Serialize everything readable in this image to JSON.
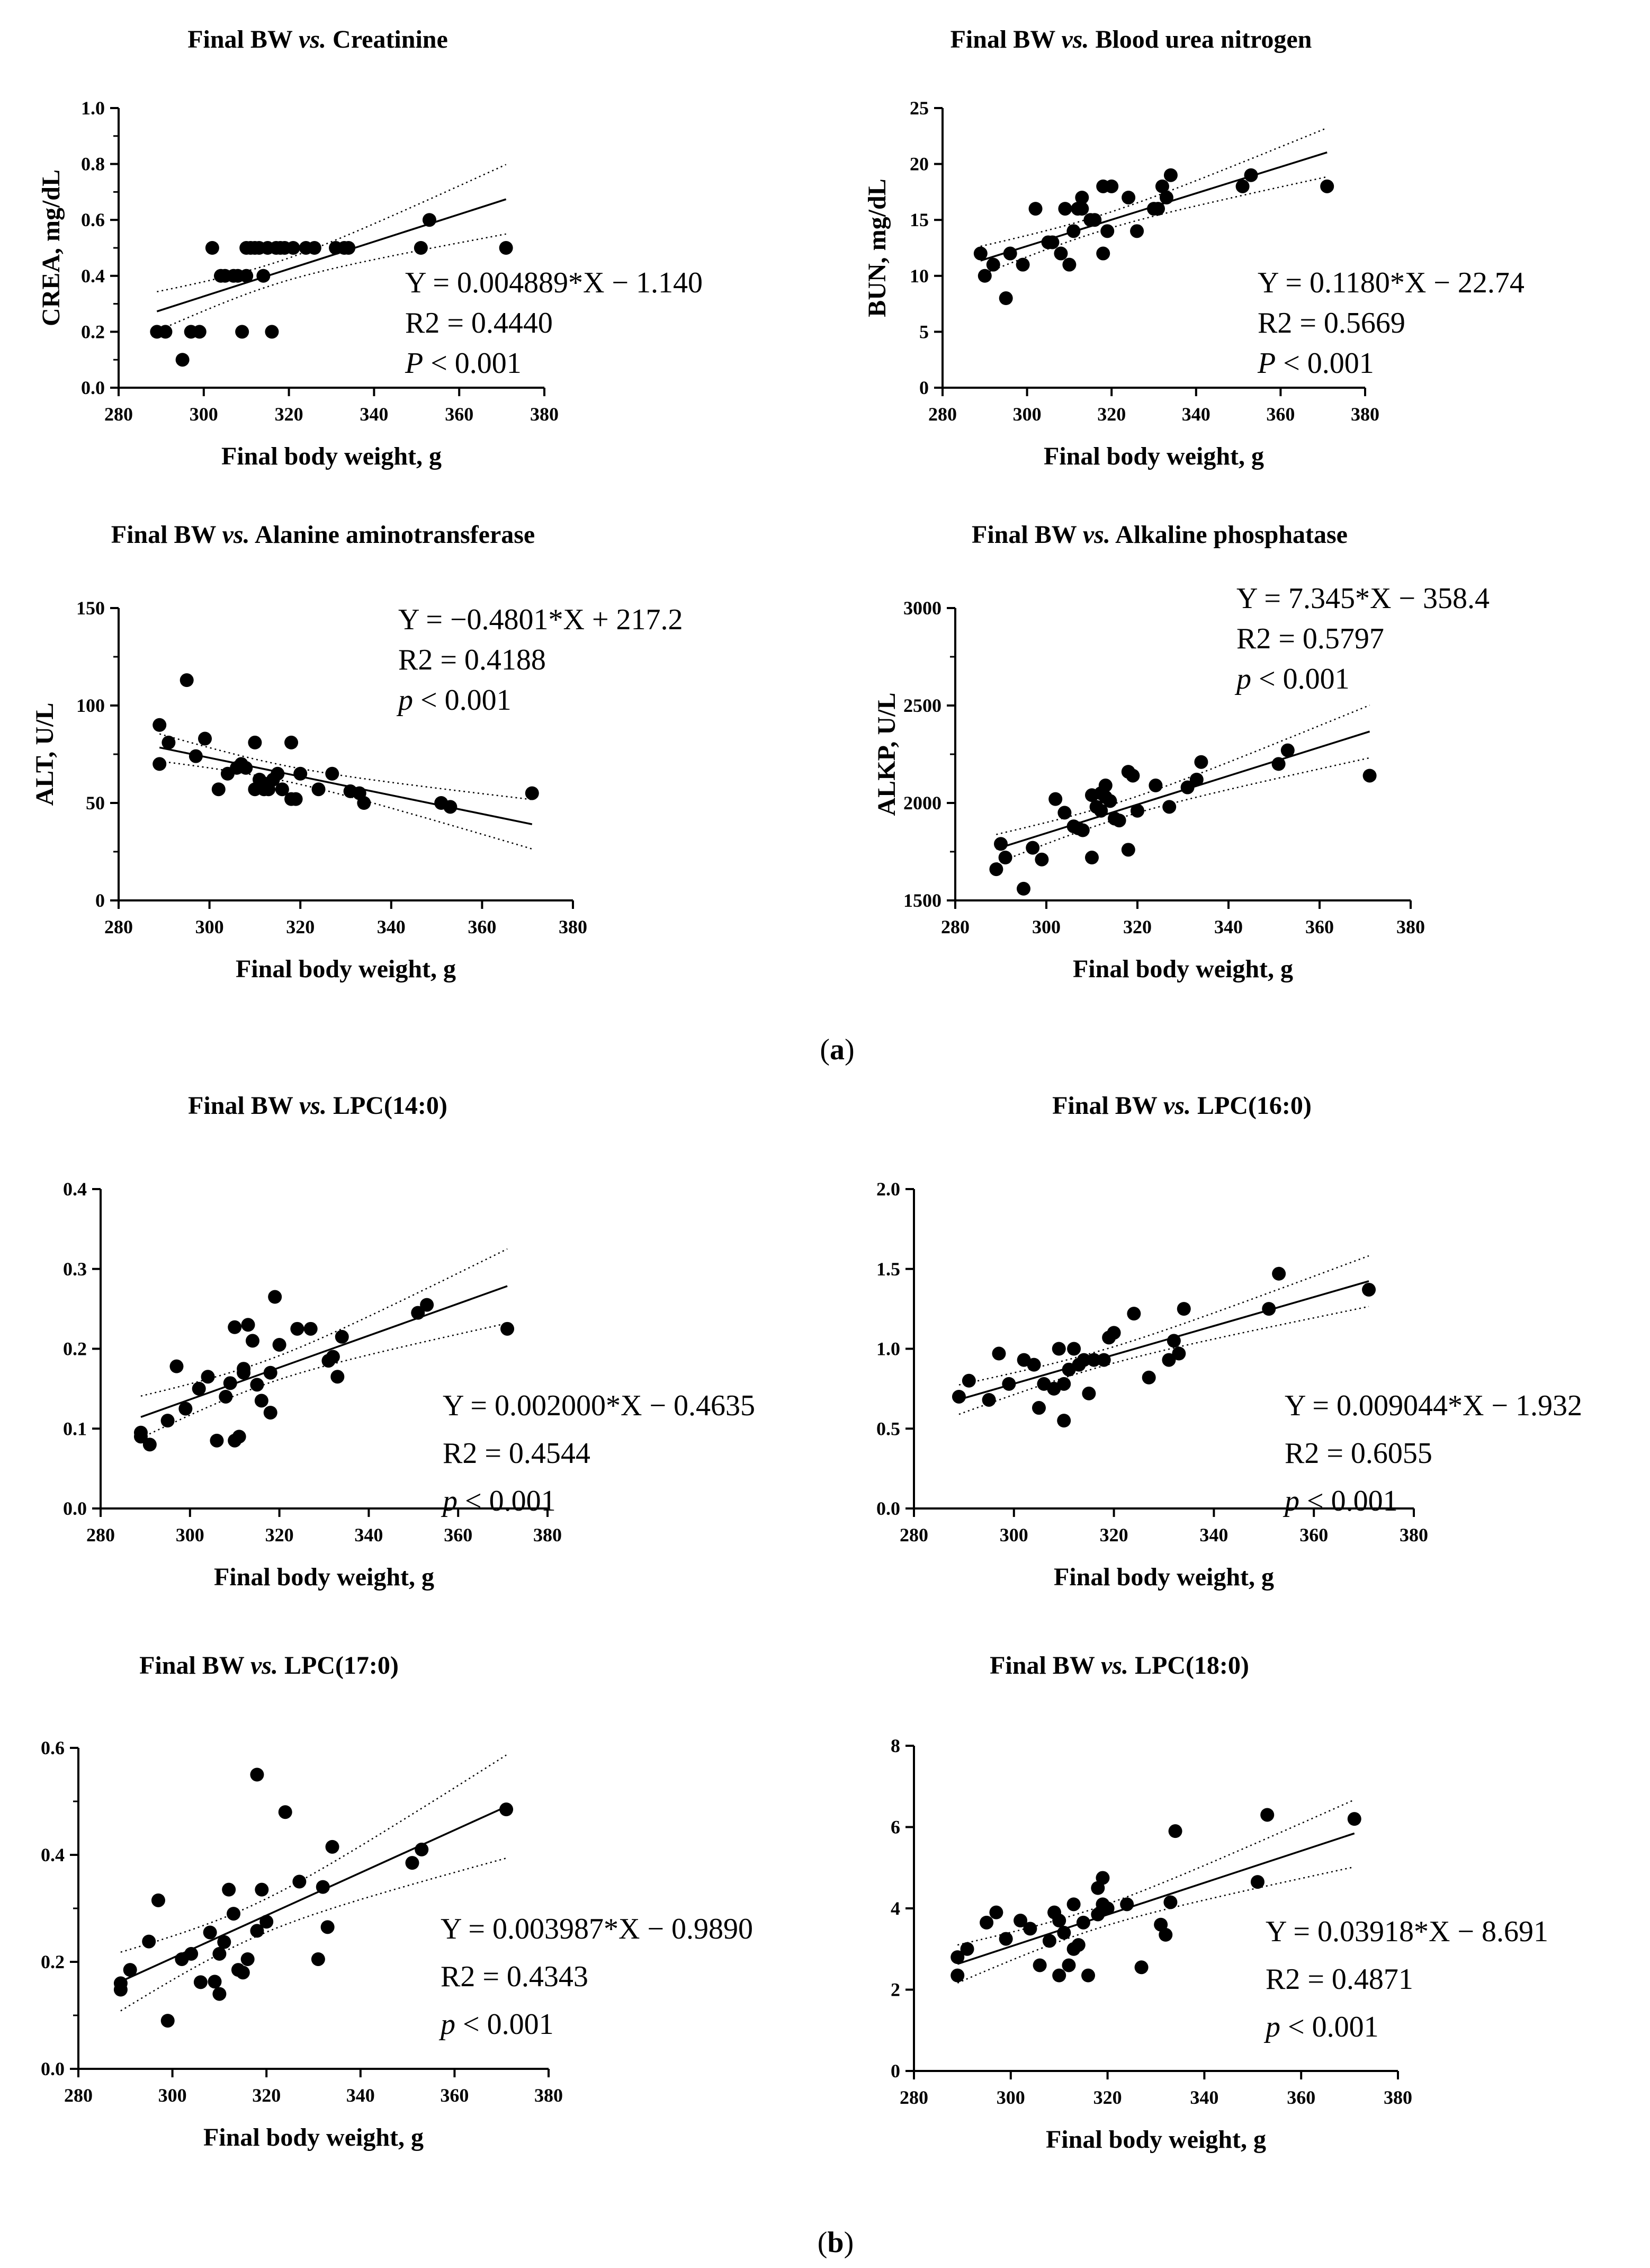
{
  "figure": {
    "panel_a_label": "a",
    "panel_b_label": "b",
    "colors": {
      "ink": "#000000",
      "background": "#ffffff"
    }
  },
  "chart_data": [
    {
      "type": "scatter",
      "title_prefix": "Final BW",
      "title_vs": "vs.",
      "title_suffix": "Creatinine",
      "xlabel": "Final body weight, g",
      "ylabel": "CREA, mg/dL",
      "xlim": [
        280,
        380
      ],
      "ylim": [
        0,
        1.0
      ],
      "xticks": [
        "280",
        "300",
        "320",
        "340",
        "360",
        "380"
      ],
      "yticks": [
        "0.0",
        "0.2",
        "0.4",
        "0.6",
        "0.8",
        "1.0"
      ],
      "yminor": true,
      "fit": {
        "slope": 0.004889,
        "intercept": -1.14,
        "x_range": [
          289,
          371
        ]
      },
      "equation": "Y = 0.004889*X − 1.140",
      "r2": "R2 = 0.4440",
      "p_symbol": "P",
      "p_text": "< 0.001",
      "x": [
        289,
        291,
        295,
        297,
        299,
        302,
        304,
        305,
        307,
        308,
        309,
        310,
        310,
        311,
        312,
        313,
        314,
        315,
        316,
        317,
        318,
        319,
        321,
        324,
        326,
        331,
        333,
        334,
        351,
        353,
        371
      ],
      "y": [
        0.2,
        0.2,
        0.1,
        0.2,
        0.2,
        0.5,
        0.4,
        0.4,
        0.4,
        0.4,
        0.2,
        0.4,
        0.5,
        0.5,
        0.5,
        0.5,
        0.4,
        0.5,
        0.2,
        0.5,
        0.5,
        0.5,
        0.5,
        0.5,
        0.5,
        0.5,
        0.5,
        0.5,
        0.5,
        0.6,
        0.5
      ]
    },
    {
      "type": "scatter",
      "title_prefix": "Final BW",
      "title_vs": "vs.",
      "title_suffix": "Blood urea nitrogen",
      "xlabel": "Final body weight, g",
      "ylabel": "BUN, mg/dL",
      "xlim": [
        280,
        380
      ],
      "ylim": [
        0,
        25
      ],
      "xticks": [
        "280",
        "300",
        "320",
        "340",
        "360",
        "380"
      ],
      "yticks": [
        "0",
        "5",
        "10",
        "15",
        "20",
        "25"
      ],
      "yminor": false,
      "fit": {
        "slope": 0.118,
        "intercept": -22.74,
        "x_range": [
          289,
          371
        ]
      },
      "equation": "Y = 0.1180*X − 22.74",
      "r2": "R2 = 0.5669",
      "p_symbol": "P",
      "p_text": "< 0.001",
      "x": [
        289,
        290,
        292,
        295,
        296,
        299,
        302,
        305,
        306,
        308,
        309,
        310,
        311,
        312,
        313,
        313,
        315,
        316,
        318,
        318,
        319,
        320,
        324,
        326,
        330,
        331,
        332,
        333,
        334,
        351,
        353,
        371
      ],
      "y": [
        12,
        10,
        11,
        8,
        12,
        11,
        16,
        13,
        13,
        12,
        16,
        11,
        14,
        16,
        16,
        17,
        15,
        15,
        12,
        18,
        14,
        18,
        17,
        14,
        16,
        16,
        18,
        17,
        19,
        18,
        19,
        18
      ]
    },
    {
      "type": "scatter",
      "title_prefix": "Final BW",
      "title_vs": "vs.",
      "title_suffix": "Alanine aminotransferase",
      "xlabel": "Final body weight, g",
      "ylabel": "ALT, U/L",
      "xlim": [
        280,
        380
      ],
      "ylim": [
        0,
        150
      ],
      "xticks": [
        "280",
        "300",
        "320",
        "340",
        "360",
        "380"
      ],
      "yticks": [
        "0",
        "50",
        "100",
        "150"
      ],
      "yminor": true,
      "fit": {
        "slope": -0.4801,
        "intercept": 217.2,
        "x_range": [
          289,
          371
        ]
      },
      "equation": "Y = −0.4801*X + 217.2",
      "r2": "R2 = 0.4188",
      "p_symbol": "p",
      "p_text": "< 0.001",
      "x": [
        289,
        289,
        291,
        295,
        297,
        299,
        302,
        304,
        306,
        307,
        308,
        310,
        310,
        311,
        312,
        312,
        313,
        314,
        315,
        316,
        318,
        318,
        319,
        320,
        324,
        327,
        331,
        333,
        334,
        351,
        353,
        371
      ],
      "y": [
        90,
        70,
        81,
        113,
        74,
        83,
        57,
        65,
        68,
        70,
        68,
        81,
        57,
        62,
        60,
        57,
        57,
        62,
        65,
        57,
        81,
        52,
        52,
        65,
        57,
        65,
        56,
        55,
        50,
        50,
        48,
        55
      ]
    },
    {
      "type": "scatter",
      "title_prefix": "Final BW",
      "title_vs": "vs.",
      "title_suffix": "Alkaline phosphatase",
      "xlabel": "Final body weight, g",
      "ylabel": "ALKP, U/L",
      "xlim": [
        280,
        380
      ],
      "ylim": [
        1500,
        3000
      ],
      "xticks": [
        "280",
        "300",
        "320",
        "340",
        "360",
        "380"
      ],
      "yticks": [
        "1500",
        "2000",
        "2500",
        "3000"
      ],
      "yminor": true,
      "fit": {
        "slope": 7.345,
        "intercept": -358.4,
        "x_range": [
          289,
          371
        ]
      },
      "equation": "Y = 7.345*X − 358.4",
      "r2": "R2 = 0.5797",
      "p_symbol": "p",
      "p_text": "< 0.001",
      "x": [
        289,
        290,
        291,
        295,
        297,
        299,
        302,
        304,
        306,
        307,
        308,
        310,
        310,
        311,
        312,
        312,
        313,
        313,
        314,
        315,
        316,
        318,
        318,
        319,
        320,
        324,
        327,
        331,
        333,
        334,
        351,
        353,
        371
      ],
      "y": [
        1660,
        1790,
        1720,
        1560,
        1770,
        1710,
        2020,
        1950,
        1880,
        1870,
        1860,
        2040,
        1720,
        1980,
        1960,
        2050,
        2090,
        2030,
        2010,
        1920,
        1910,
        2160,
        1760,
        2140,
        1960,
        2090,
        1980,
        2080,
        2120,
        2210,
        2200,
        2270,
        2140
      ]
    },
    {
      "type": "scatter",
      "title_prefix": "Final BW",
      "title_vs": "vs.",
      "title_suffix": "LPC(14:0)",
      "xlabel": "Final body weight, g",
      "ylabel": "",
      "xlim": [
        280,
        380
      ],
      "ylim": [
        0,
        0.4
      ],
      "xticks": [
        "280",
        "300",
        "320",
        "340",
        "360",
        "380"
      ],
      "yticks": [
        "0.0",
        "0.1",
        "0.2",
        "0.3",
        "0.4"
      ],
      "yminor": false,
      "fit": {
        "slope": 0.002,
        "intercept": -0.4635,
        "x_range": [
          289,
          371
        ]
      },
      "equation": "Y = 0.002000*X − 0.4635",
      "r2": "R2 = 0.4544",
      "p_symbol": "p",
      "p_text": "< 0.001",
      "x": [
        289,
        289,
        291,
        295,
        297,
        299,
        302,
        304,
        306,
        308,
        309,
        310,
        310,
        311,
        312,
        312,
        313,
        314,
        315,
        316,
        318,
        318,
        319,
        320,
        324,
        327,
        331,
        332,
        333,
        334,
        351,
        353,
        371
      ],
      "y": [
        0.095,
        0.09,
        0.08,
        0.11,
        0.178,
        0.125,
        0.15,
        0.165,
        0.085,
        0.14,
        0.157,
        0.227,
        0.085,
        0.09,
        0.175,
        0.17,
        0.23,
        0.21,
        0.155,
        0.135,
        0.12,
        0.17,
        0.265,
        0.205,
        0.225,
        0.225,
        0.185,
        0.19,
        0.165,
        0.215,
        0.245,
        0.255,
        0.225
      ]
    },
    {
      "type": "scatter",
      "title_prefix": "Final BW",
      "title_vs": "vs.",
      "title_suffix": "LPC(16:0)",
      "xlabel": "Final body weight, g",
      "ylabel": "",
      "xlim": [
        280,
        380
      ],
      "ylim": [
        0,
        2.0
      ],
      "xticks": [
        "280",
        "300",
        "320",
        "340",
        "360",
        "380"
      ],
      "yticks": [
        "0.0",
        "0.5",
        "1.0",
        "1.5",
        "2.0"
      ],
      "yminor": false,
      "fit": {
        "slope": 0.009044,
        "intercept": -1.932,
        "x_range": [
          289,
          371
        ]
      },
      "equation": "Y = 0.009044*X − 1.932",
      "r2": "R2 = 0.6055",
      "p_symbol": "p",
      "p_text": "< 0.001",
      "x": [
        289,
        291,
        295,
        297,
        299,
        302,
        304,
        305,
        306,
        308,
        309,
        310,
        310,
        311,
        312,
        313,
        314,
        315,
        316,
        318,
        319,
        320,
        324,
        327,
        331,
        332,
        333,
        334,
        351,
        353,
        371
      ],
      "y": [
        0.7,
        0.8,
        0.68,
        0.97,
        0.78,
        0.93,
        0.9,
        0.63,
        0.78,
        0.75,
        1.0,
        0.55,
        0.78,
        0.87,
        1.0,
        0.9,
        0.93,
        0.72,
        0.93,
        0.93,
        1.07,
        1.1,
        1.22,
        0.82,
        0.93,
        1.05,
        0.97,
        1.25,
        1.25,
        1.47,
        1.37
      ]
    },
    {
      "type": "scatter",
      "title_prefix": "Final BW",
      "title_vs": "vs.",
      "title_suffix": "LPC(17:0)",
      "xlabel": "Final body weight, g",
      "ylabel": "",
      "xlim": [
        280,
        380
      ],
      "ylim": [
        0,
        0.6
      ],
      "xticks": [
        "280",
        "300",
        "320",
        "340",
        "360",
        "380"
      ],
      "yticks": [
        "0.0",
        "0.2",
        "0.4",
        "0.6"
      ],
      "yminor": true,
      "fit": {
        "slope": 0.003987,
        "intercept": -0.989,
        "x_range": [
          289,
          371
        ]
      },
      "equation": "Y = 0.003987*X − 0.9890",
      "r2": "R2 = 0.4343",
      "p_symbol": "p",
      "p_text": "< 0.001",
      "x": [
        289,
        289,
        291,
        295,
        297,
        299,
        302,
        304,
        306,
        308,
        309,
        310,
        310,
        311,
        312,
        313,
        314,
        315,
        316,
        318,
        318,
        319,
        320,
        324,
        327,
        331,
        332,
        333,
        334,
        351,
        353,
        371
      ],
      "y": [
        0.16,
        0.148,
        0.185,
        0.238,
        0.315,
        0.09,
        0.205,
        0.215,
        0.162,
        0.255,
        0.163,
        0.14,
        0.215,
        0.237,
        0.335,
        0.29,
        0.185,
        0.18,
        0.205,
        0.258,
        0.55,
        0.335,
        0.275,
        0.48,
        0.35,
        0.205,
        0.34,
        0.265,
        0.415,
        0.385,
        0.41,
        0.485
      ]
    },
    {
      "type": "scatter",
      "title_prefix": "Final BW",
      "title_vs": "vs.",
      "title_suffix": "LPC(18:0)",
      "xlabel": "Final body weight, g",
      "ylabel": "",
      "xlim": [
        280,
        380
      ],
      "ylim": [
        0,
        8
      ],
      "xticks": [
        "280",
        "300",
        "320",
        "340",
        "360",
        "380"
      ],
      "yticks": [
        "0",
        "2",
        "4",
        "6",
        "8"
      ],
      "yminor": false,
      "fit": {
        "slope": 0.03918,
        "intercept": -8.691,
        "x_range": [
          289,
          371
        ]
      },
      "equation": "Y = 0.03918*X − 8.691",
      "r2": "R2 = 0.4871",
      "p_symbol": "p",
      "p_text": "< 0.001",
      "x": [
        289,
        289,
        291,
        295,
        297,
        299,
        302,
        304,
        306,
        308,
        309,
        310,
        310,
        311,
        312,
        313,
        313,
        314,
        315,
        316,
        318,
        318,
        319,
        319,
        320,
        324,
        327,
        331,
        332,
        333,
        334,
        351,
        353,
        371
      ],
      "y": [
        2.8,
        2.35,
        3.0,
        3.65,
        3.9,
        3.25,
        3.7,
        3.5,
        2.6,
        3.2,
        3.9,
        2.35,
        3.7,
        3.4,
        2.6,
        3.0,
        4.1,
        3.1,
        3.65,
        2.35,
        3.85,
        4.5,
        4.75,
        4.1,
        4.0,
        4.1,
        2.55,
        3.6,
        3.35,
        4.15,
        5.9,
        4.65,
        6.3,
        6.2
      ]
    }
  ]
}
